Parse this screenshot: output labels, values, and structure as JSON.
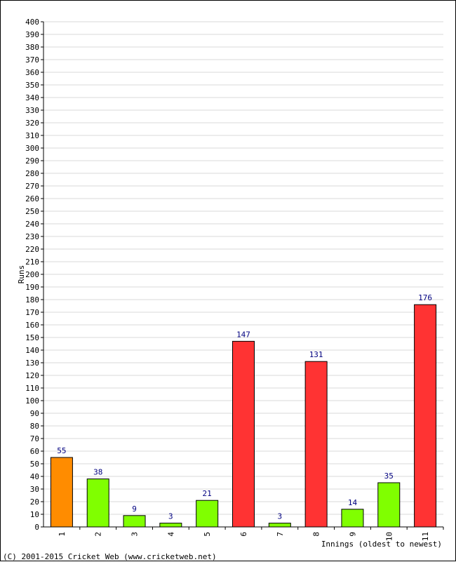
{
  "chart_data": {
    "type": "bar",
    "categories": [
      "1",
      "2",
      "3",
      "4",
      "5",
      "6",
      "7",
      "8",
      "9",
      "10",
      "11"
    ],
    "values": [
      55,
      38,
      9,
      3,
      21,
      147,
      3,
      131,
      14,
      35,
      176
    ],
    "bar_colors": [
      "#ff8c00",
      "#80ff00",
      "#80ff00",
      "#80ff00",
      "#80ff00",
      "#ff3333",
      "#80ff00",
      "#ff3333",
      "#80ff00",
      "#80ff00",
      "#ff3333"
    ],
    "xlabel": "Innings (oldest to newest)",
    "ylabel": "Runs",
    "ylim": [
      0,
      400
    ],
    "ytick_step": 10,
    "grid": true
  },
  "footer": {
    "copyright": "(C) 2001-2015 Cricket Web (www.cricketweb.net)"
  },
  "colors": {
    "grid": "#d8d8d8",
    "axis": "#000000",
    "value_label": "#000080",
    "text": "#000000"
  }
}
